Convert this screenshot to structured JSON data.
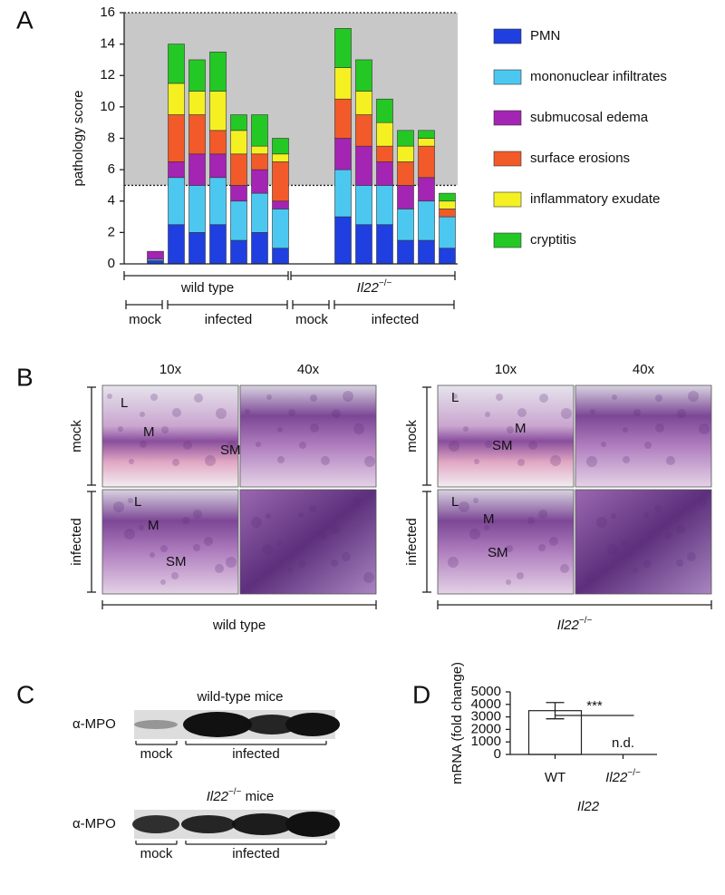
{
  "panel_labels": [
    "A",
    "B",
    "C",
    "D"
  ],
  "chart_data": [
    {
      "type": "bar",
      "stacked": true,
      "ylabel": "pathology score",
      "ylim": [
        0,
        16
      ],
      "yticks": [
        0,
        2,
        4,
        6,
        8,
        10,
        12,
        14,
        16
      ],
      "shaded_from": 5,
      "categories": [
        null,
        null,
        null,
        null,
        null,
        null,
        null,
        null,
        null,
        null,
        null,
        null,
        null,
        null,
        null,
        null
      ],
      "groups": [
        {
          "name": "wild type",
          "subgroups": [
            "mock",
            "infected"
          ]
        },
        {
          "name": "Il22−/−",
          "subgroups": [
            "mock",
            "infected"
          ]
        }
      ],
      "series": [
        {
          "name": "PMN",
          "color": "#1f3fe0",
          "values": [
            0,
            0.2,
            2.5,
            2,
            2.5,
            1.5,
            2,
            1,
            0,
            0,
            3,
            2.5,
            2.5,
            1.5,
            1.5,
            1
          ]
        },
        {
          "name": "mononuclear infiltrates",
          "color": "#4cc8f0",
          "values": [
            0,
            0.1,
            3,
            3,
            3,
            2.5,
            2.5,
            2.5,
            0,
            0,
            3,
            2.5,
            2.5,
            2,
            2.5,
            2
          ]
        },
        {
          "name": "submucosal edema",
          "color": "#a424b4",
          "values": [
            0,
            0.5,
            1,
            2,
            1.5,
            1,
            1.5,
            0.5,
            0,
            0,
            2,
            2.5,
            1.5,
            1.5,
            1.5,
            0
          ]
        },
        {
          "name": "surface erosions",
          "color": "#f25a2a",
          "values": [
            0,
            0,
            3,
            2.5,
            1.5,
            2,
            1,
            2.5,
            0,
            0,
            2.5,
            2,
            1,
            1.5,
            2,
            0.5
          ]
        },
        {
          "name": "inflammatory exudate",
          "color": "#f5f022",
          "values": [
            0,
            0,
            2,
            1.5,
            2.5,
            1.5,
            0.5,
            0.5,
            0,
            0,
            2,
            1.5,
            1.5,
            1,
            0.5,
            0.5
          ]
        },
        {
          "name": "cryptitis",
          "color": "#24c824",
          "values": [
            0,
            0,
            2.5,
            2,
            2.5,
            1,
            2,
            1,
            0,
            0,
            2.5,
            2,
            1.5,
            1,
            0.5,
            0.5
          ]
        }
      ]
    },
    {
      "type": "bar",
      "ylabel": "mRNA (fold change)",
      "xlabel": "Il22",
      "ylim": [
        0,
        5000
      ],
      "yticks": [
        0,
        1000,
        2000,
        3000,
        4000,
        5000
      ],
      "categories": [
        "WT",
        "Il22−/−"
      ],
      "values": [
        3500,
        null
      ],
      "errors": [
        650,
        null
      ],
      "value_labels": [
        null,
        "n.d."
      ],
      "significance": "***",
      "color": "#ffffff"
    }
  ],
  "histology": {
    "groups": [
      {
        "name": "wild type",
        "magnifications": [
          "10x",
          "40x"
        ],
        "rows": [
          "mock",
          "infected"
        ],
        "annotations": [
          [
            "L",
            "M",
            "SM"
          ],
          [
            "L",
            "M",
            "SM"
          ]
        ]
      },
      {
        "name": "Il22−/−",
        "magnifications": [
          "10x",
          "40x"
        ],
        "rows": [
          "mock",
          "infected"
        ],
        "annotations": [
          [
            "L",
            "M",
            "SM"
          ],
          [
            "L",
            "M",
            "SM"
          ]
        ]
      }
    ]
  },
  "blots": [
    {
      "title": "wild-type mice",
      "antibody": "α-MPO",
      "lanes": [
        "mock",
        "infected"
      ]
    },
    {
      "title": "Il22−/− mice",
      "antibody": "α-MPO",
      "lanes": [
        "mock",
        "infected"
      ]
    }
  ]
}
